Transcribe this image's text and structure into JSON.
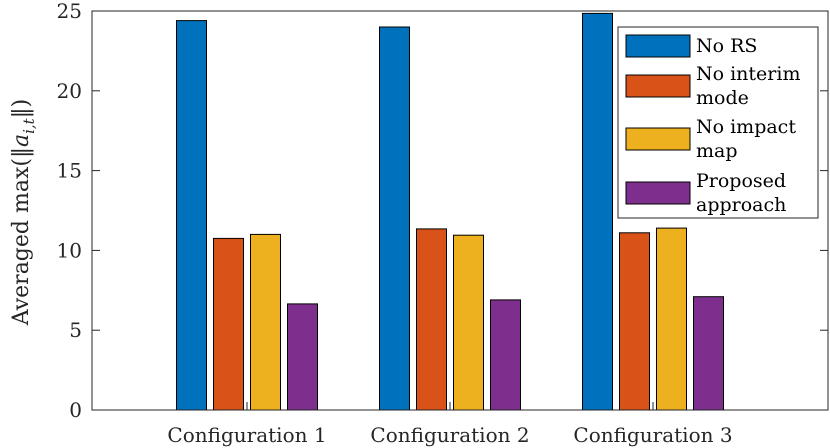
{
  "chart_data": {
    "type": "bar",
    "categories": [
      "Configuration 1",
      "Configuration 2",
      "Configuration 3"
    ],
    "series": [
      {
        "name": "No RS",
        "color": "#0072BD",
        "values": [
          24.4,
          24.0,
          24.85
        ]
      },
      {
        "name": "No interim mode",
        "color": "#D95319",
        "values": [
          10.75,
          11.35,
          11.1
        ]
      },
      {
        "name": "No impact map",
        "color": "#EDB120",
        "values": [
          11.0,
          10.95,
          11.4
        ]
      },
      {
        "name": "Proposed approach",
        "color": "#7E2F8E",
        "values": [
          6.65,
          6.9,
          7.1
        ]
      }
    ],
    "ylabel": "Averaged max(||a_{i,t}||)",
    "ylabel_prefix": "Averaged max(‖",
    "ylabel_var": "a",
    "ylabel_sub": "i,t",
    "ylabel_suffix": "‖)",
    "ylim": [
      0,
      25
    ],
    "yticks": [
      "0",
      "5",
      "10",
      "15",
      "20",
      "25"
    ],
    "grid": false,
    "legend_placement": "top-right",
    "legend_labels": [
      [
        "No RS"
      ],
      [
        "No interim",
        "mode"
      ],
      [
        "No impact",
        "map"
      ],
      [
        "Proposed",
        "approach"
      ]
    ]
  }
}
